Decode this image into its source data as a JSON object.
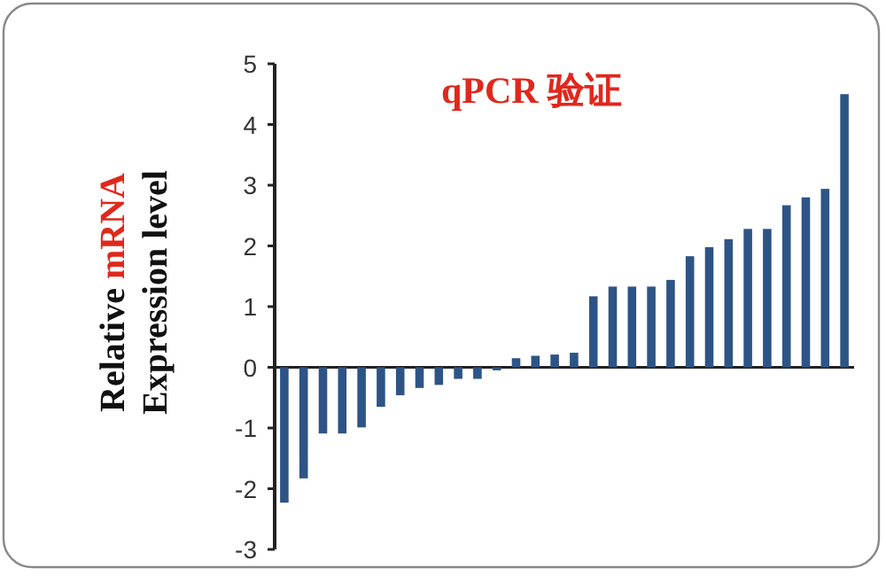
{
  "chart_data": {
    "type": "bar",
    "title": "qPCR 验证",
    "ylabel": "Relative mRNA Expression level",
    "categories": [
      null,
      null,
      null,
      null,
      null,
      null,
      null,
      null,
      null,
      null,
      null,
      null,
      null,
      null,
      null,
      null,
      null,
      null,
      null,
      null,
      null,
      null,
      null,
      null,
      null,
      null,
      null,
      null,
      null,
      null
    ],
    "values": [
      -2.23,
      -1.83,
      -1.09,
      -1.09,
      -0.99,
      -0.65,
      -0.46,
      -0.34,
      -0.29,
      -0.19,
      -0.19,
      -0.05,
      0.15,
      0.19,
      0.21,
      0.24,
      1.17,
      1.33,
      1.33,
      1.33,
      1.44,
      1.83,
      1.98,
      2.11,
      2.28,
      2.28,
      2.67,
      2.8,
      2.94,
      4.5
    ],
    "color": "#2e5486",
    "ylim": [
      -3,
      5
    ],
    "yticks": [
      -3,
      -2,
      -1,
      0,
      1,
      2,
      3,
      4,
      5
    ]
  }
}
